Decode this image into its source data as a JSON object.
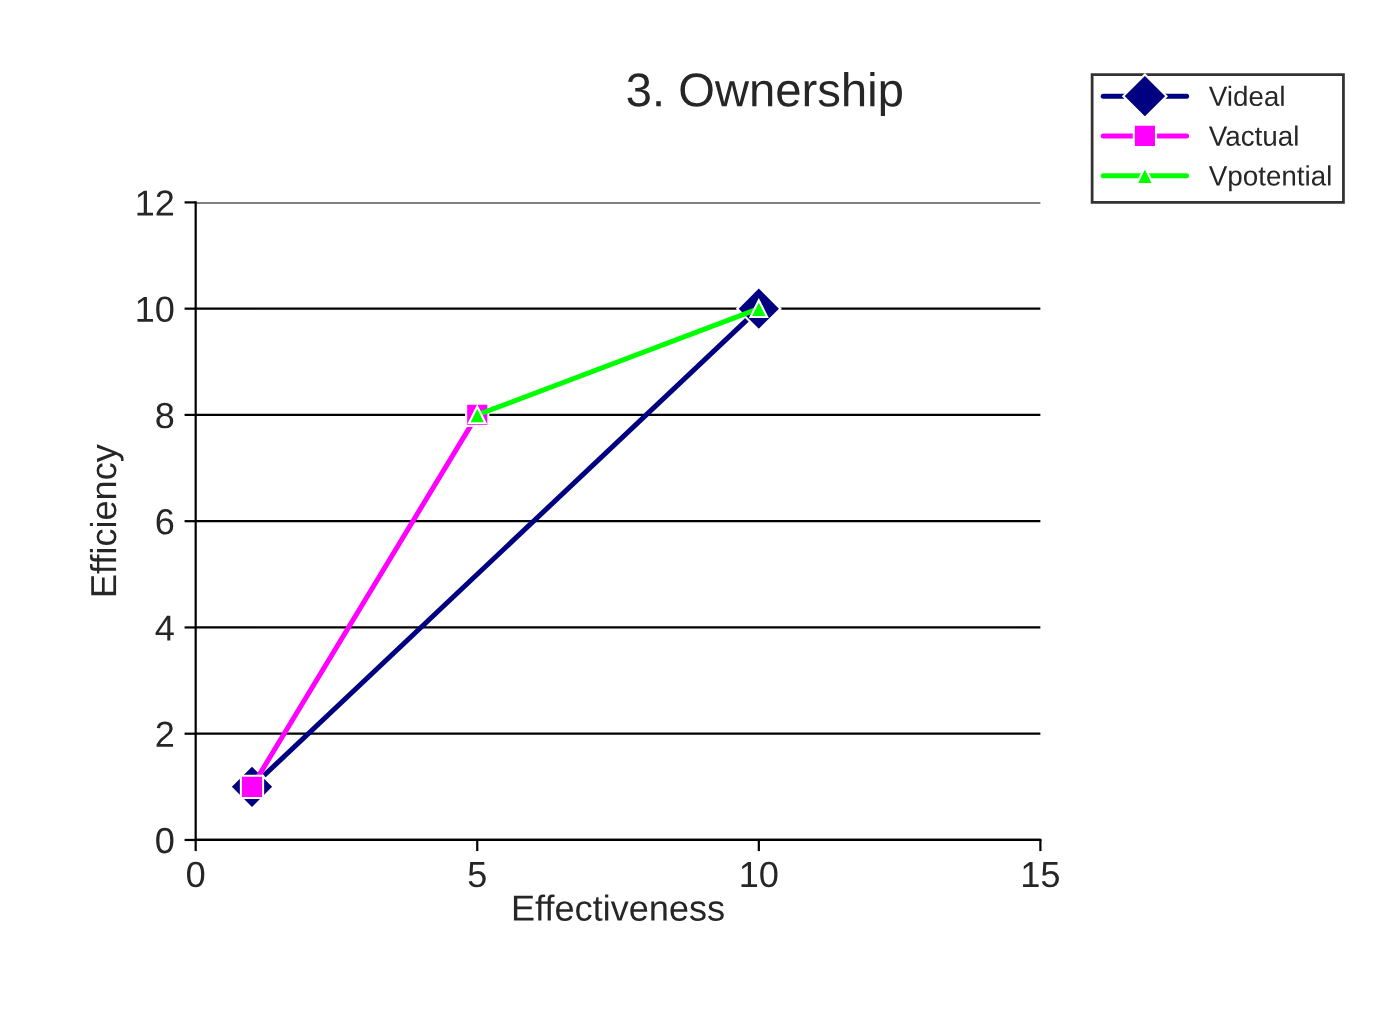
{
  "chart_data": {
    "type": "line",
    "title": "3. Ownership",
    "xlabel": "Effectiveness",
    "ylabel": "Efficiency",
    "series": [
      {
        "name": "Videal",
        "color": "#000080",
        "x": [
          1,
          10
        ],
        "values": [
          1,
          10
        ],
        "marker": "diamond"
      },
      {
        "name": "Vactual",
        "color": "#ff00ff",
        "x": [
          1,
          5
        ],
        "values": [
          1,
          8
        ],
        "marker": "square"
      },
      {
        "name": "Vpotential",
        "color": "#00ff00",
        "x": [
          5,
          10
        ],
        "values": [
          8,
          10
        ],
        "marker": "triangle"
      }
    ],
    "xlim": [
      0,
      15
    ],
    "xticks": [
      0,
      5,
      10,
      15
    ],
    "ylim": [
      0,
      12
    ],
    "yticks": [
      0,
      2,
      4,
      6,
      8,
      10,
      12
    ],
    "grid": "y",
    "legend": "top right"
  }
}
